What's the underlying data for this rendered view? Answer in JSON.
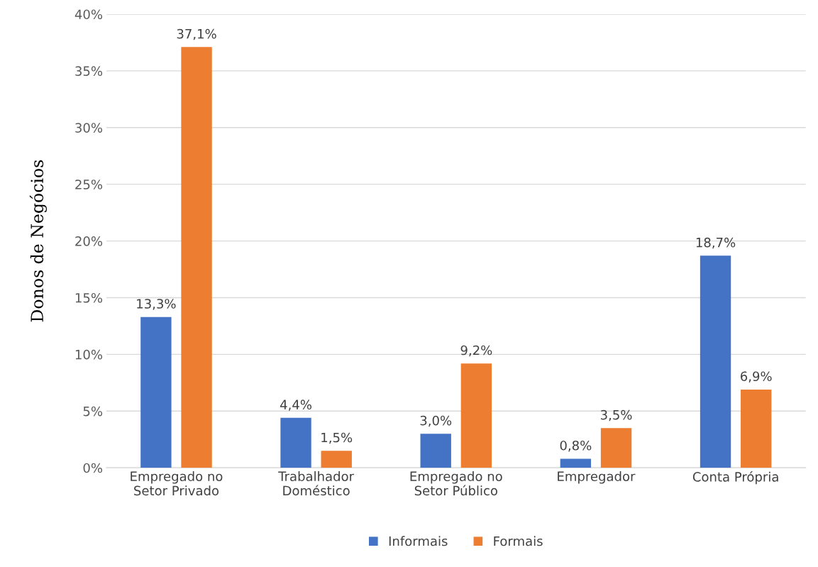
{
  "chart_data": {
    "type": "bar",
    "ylabel": "Donos de Negócios",
    "categories": [
      "Empregado no\nSetor Privado",
      "Trabalhador\nDoméstico",
      "Empregado no\nSetor Público",
      "Empregador",
      "Conta Própria"
    ],
    "series": [
      {
        "name": "Informais",
        "color": "#4472c4",
        "values": [
          13.3,
          4.4,
          3.0,
          0.8,
          18.7
        ],
        "value_labels": [
          "13,3%",
          "4,4%",
          "3,0%",
          "0,8%",
          "18,7%"
        ]
      },
      {
        "name": "Formais",
        "color": "#ed7d31",
        "values": [
          37.1,
          1.5,
          9.2,
          3.5,
          6.9
        ],
        "value_labels": [
          "37,1%",
          "1,5%",
          "9,2%",
          "3,5%",
          "6,9%"
        ]
      }
    ],
    "ylim": [
      0,
      40
    ],
    "yticks": [
      {
        "value": 0,
        "label": "0%"
      },
      {
        "value": 5,
        "label": "5%"
      },
      {
        "value": 10,
        "label": "10%"
      },
      {
        "value": 15,
        "label": "15%"
      },
      {
        "value": 20,
        "label": "20%"
      },
      {
        "value": 25,
        "label": "25%"
      },
      {
        "value": 30,
        "label": "30%"
      },
      {
        "value": 35,
        "label": "35%"
      },
      {
        "value": 40,
        "label": "40%"
      }
    ],
    "grid": "y",
    "legend": "bottom"
  }
}
